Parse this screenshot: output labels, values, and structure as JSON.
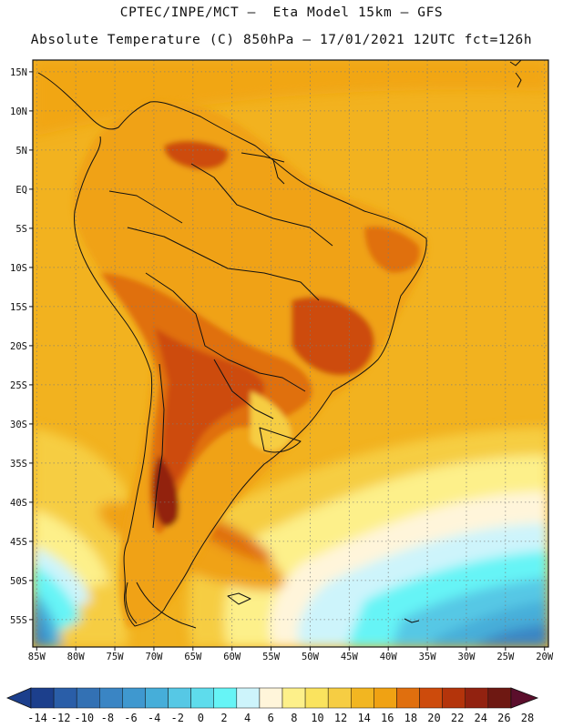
{
  "header": {
    "line1": "CPTEC/INPE/MCT —  Eta Model 15km — GFS",
    "line2": "Absolute Temperature (C) 850hPa — 17/01/2021 12UTC fct=126h"
  },
  "map": {
    "lon_range": [
      -85.5,
      -19.5
    ],
    "lat_range": [
      -58.5,
      16.5
    ],
    "x_ticks": [
      "85W",
      "80W",
      "75W",
      "70W",
      "65W",
      "60W",
      "55W",
      "50W",
      "45W",
      "40W",
      "35W",
      "30W",
      "25W",
      "20W"
    ],
    "y_ticks": [
      "15N",
      "10N",
      "5N",
      "EQ",
      "5S",
      "10S",
      "15S",
      "20S",
      "25S",
      "30S",
      "35S",
      "40S",
      "45S",
      "50S",
      "55S"
    ],
    "grid": "dotted",
    "ocean_base_color": "#f2b21f",
    "land_base_color": "#f0a51a"
  },
  "colorbar": {
    "labels": [
      "-14",
      "-12",
      "-10",
      "-8",
      "-6",
      "-4",
      "-2",
      "0",
      "2",
      "4",
      "6",
      "8",
      "10",
      "12",
      "14",
      "16",
      "18",
      "20",
      "22",
      "24",
      "26",
      "28"
    ],
    "colors": [
      "#1c3f8c",
      "#2a5ea8",
      "#3371b4",
      "#3a85c4",
      "#3f98cf",
      "#46aed9",
      "#56c8e5",
      "#5edcec",
      "#66f4f6",
      "#cdf4fb",
      "#fff5da",
      "#fdf08a",
      "#fae35e",
      "#f6cd43",
      "#f2b621",
      "#f0a213",
      "#e06f0e",
      "#cd4b0c",
      "#b4340b",
      "#922210",
      "#6e1812",
      "#5b0e2c"
    ]
  }
}
